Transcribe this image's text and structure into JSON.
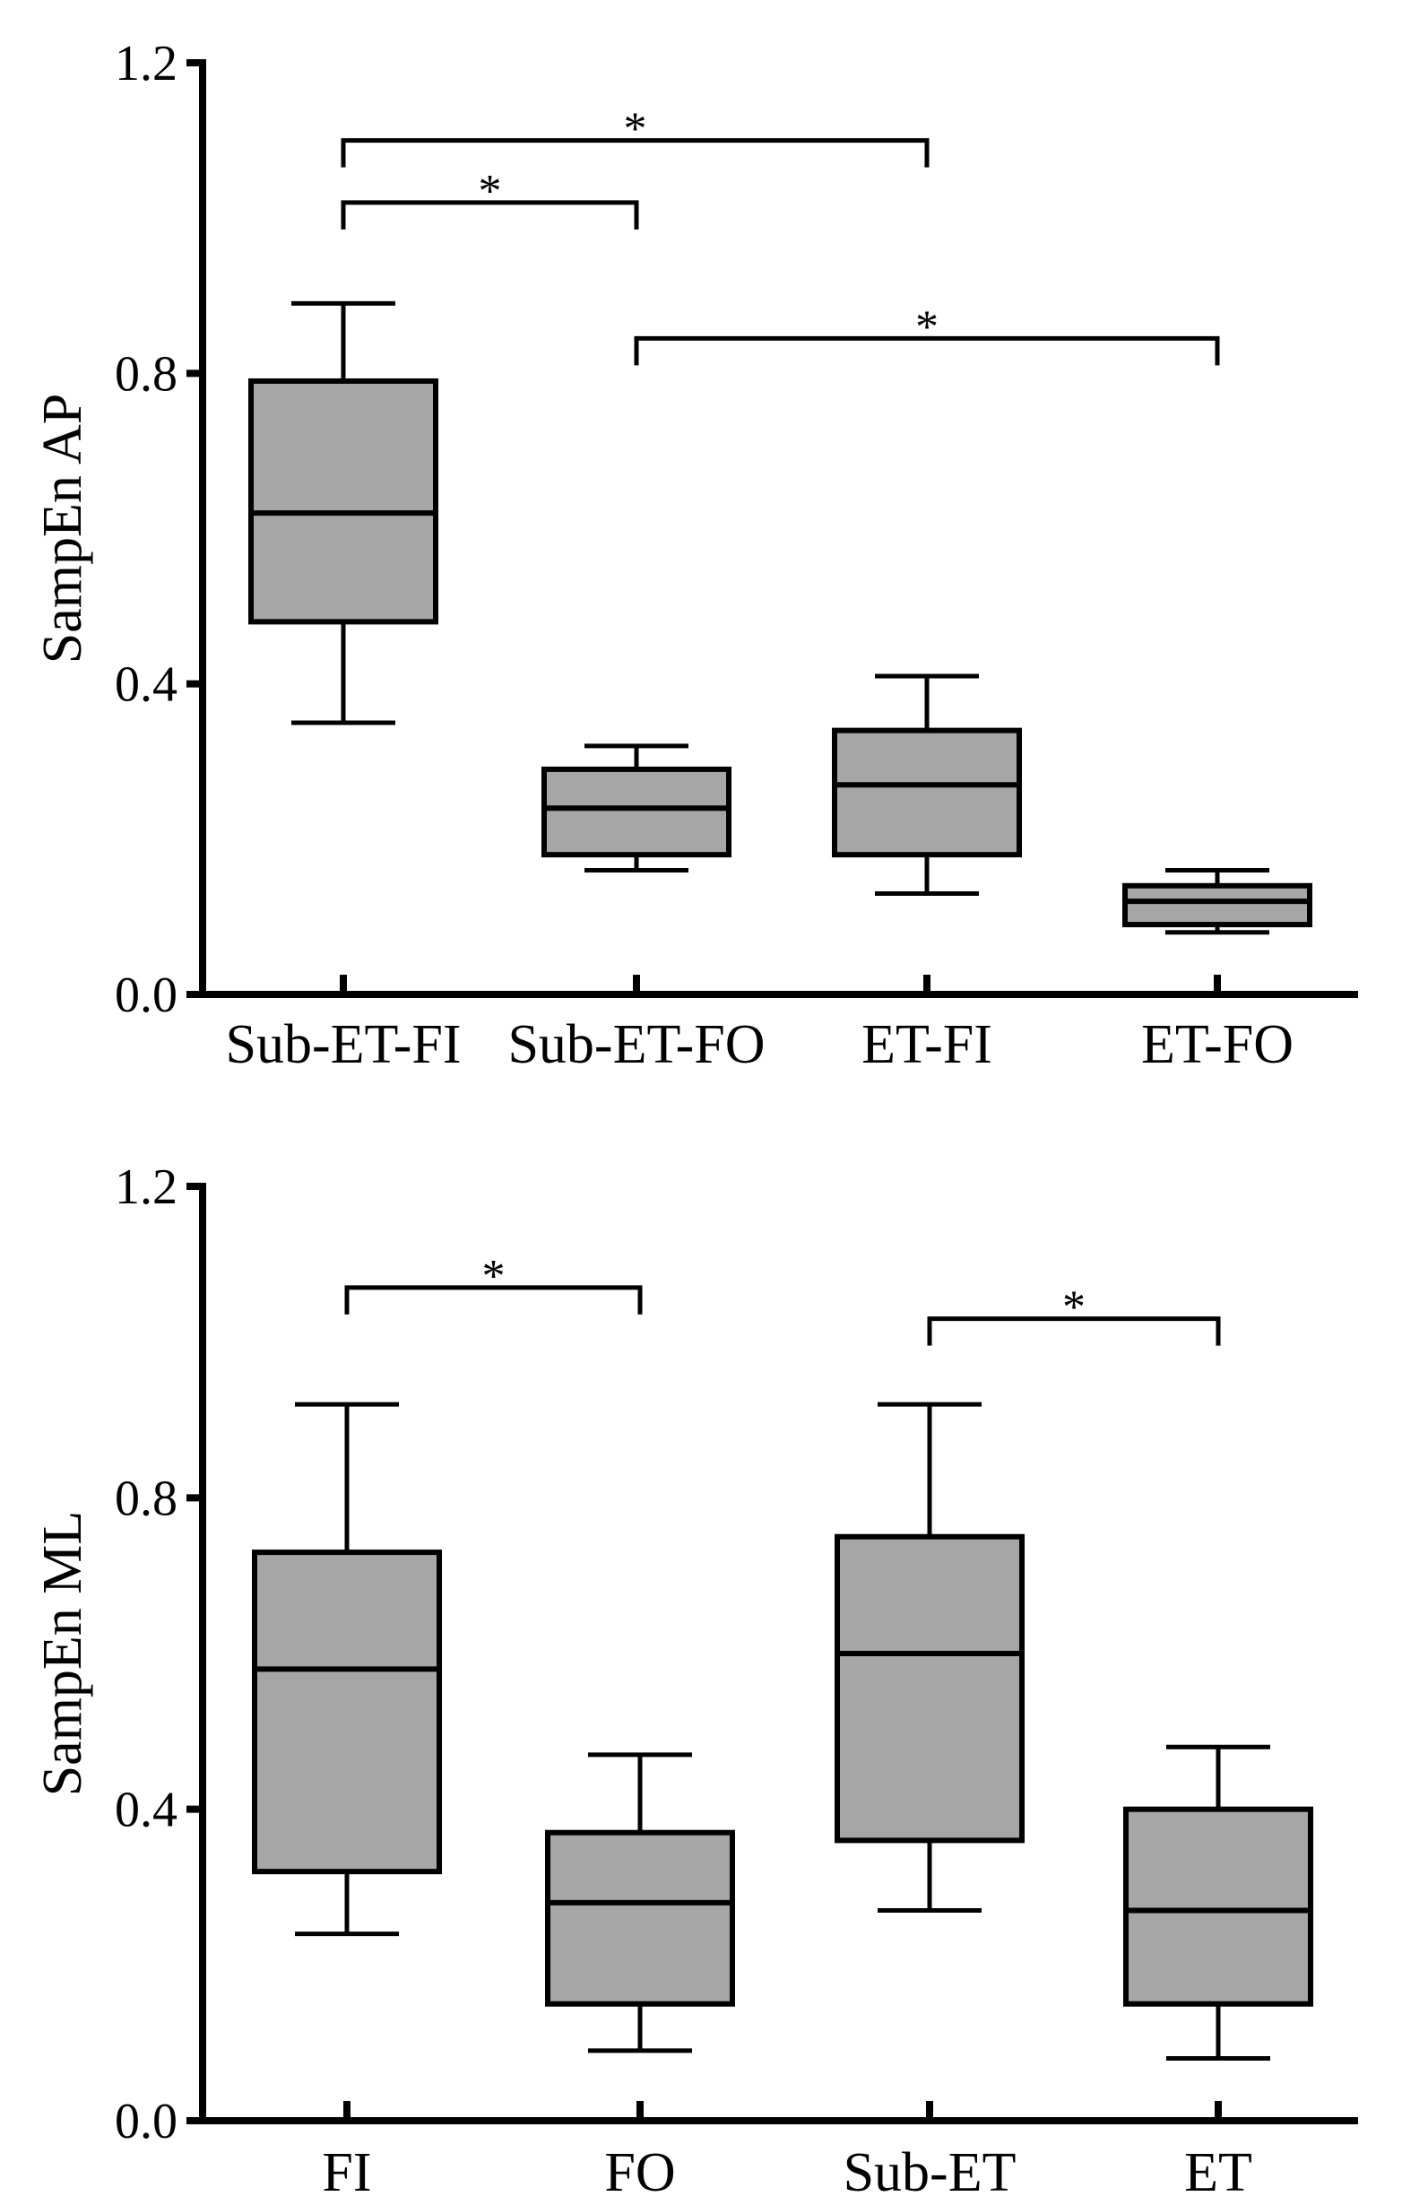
{
  "chart_data": [
    {
      "type": "box",
      "ylabel": "SampEn AP",
      "ylim": [
        0,
        1.2
      ],
      "yticks": [
        "0.0",
        "0.4",
        "0.8",
        "1.2"
      ],
      "categories": [
        "Sub-ET-FI",
        "Sub-ET-FO",
        "ET-FI",
        "ET-FO"
      ],
      "boxes": [
        {
          "name": "Sub-ET-FI",
          "min": 0.35,
          "q1": 0.48,
          "median": 0.62,
          "q3": 0.79,
          "max": 0.89
        },
        {
          "name": "Sub-ET-FO",
          "min": 0.16,
          "q1": 0.18,
          "median": 0.24,
          "q3": 0.29,
          "max": 0.32
        },
        {
          "name": "ET-FI",
          "min": 0.13,
          "q1": 0.18,
          "median": 0.27,
          "q3": 0.34,
          "max": 0.41
        },
        {
          "name": "ET-FO",
          "min": 0.08,
          "q1": 0.09,
          "median": 0.12,
          "q3": 0.14,
          "max": 0.16
        }
      ],
      "significance": [
        {
          "from": 0,
          "to": 1,
          "y": 1.02,
          "label": "*"
        },
        {
          "from": 0,
          "to": 2,
          "y": 1.1,
          "label": "*"
        },
        {
          "from": 1,
          "to": 3,
          "y": 0.845,
          "label": "*"
        }
      ]
    },
    {
      "type": "box",
      "ylabel": "SampEn ML",
      "ylim": [
        0,
        1.2
      ],
      "yticks": [
        "0.0",
        "0.4",
        "0.8",
        "1.2"
      ],
      "categories": [
        "FI",
        "FO",
        "Sub-ET",
        "ET"
      ],
      "boxes": [
        {
          "name": "FI",
          "min": 0.24,
          "q1": 0.32,
          "median": 0.58,
          "q3": 0.73,
          "max": 0.92
        },
        {
          "name": "FO",
          "min": 0.09,
          "q1": 0.15,
          "median": 0.28,
          "q3": 0.37,
          "max": 0.47
        },
        {
          "name": "Sub-ET",
          "min": 0.27,
          "q1": 0.36,
          "median": 0.6,
          "q3": 0.75,
          "max": 0.92
        },
        {
          "name": "ET",
          "min": 0.08,
          "q1": 0.15,
          "median": 0.27,
          "q3": 0.4,
          "max": 0.48
        }
      ],
      "significance": [
        {
          "from": 0,
          "to": 1,
          "y": 1.07,
          "label": "*"
        },
        {
          "from": 2,
          "to": 3,
          "y": 1.03,
          "label": "*"
        }
      ]
    }
  ]
}
